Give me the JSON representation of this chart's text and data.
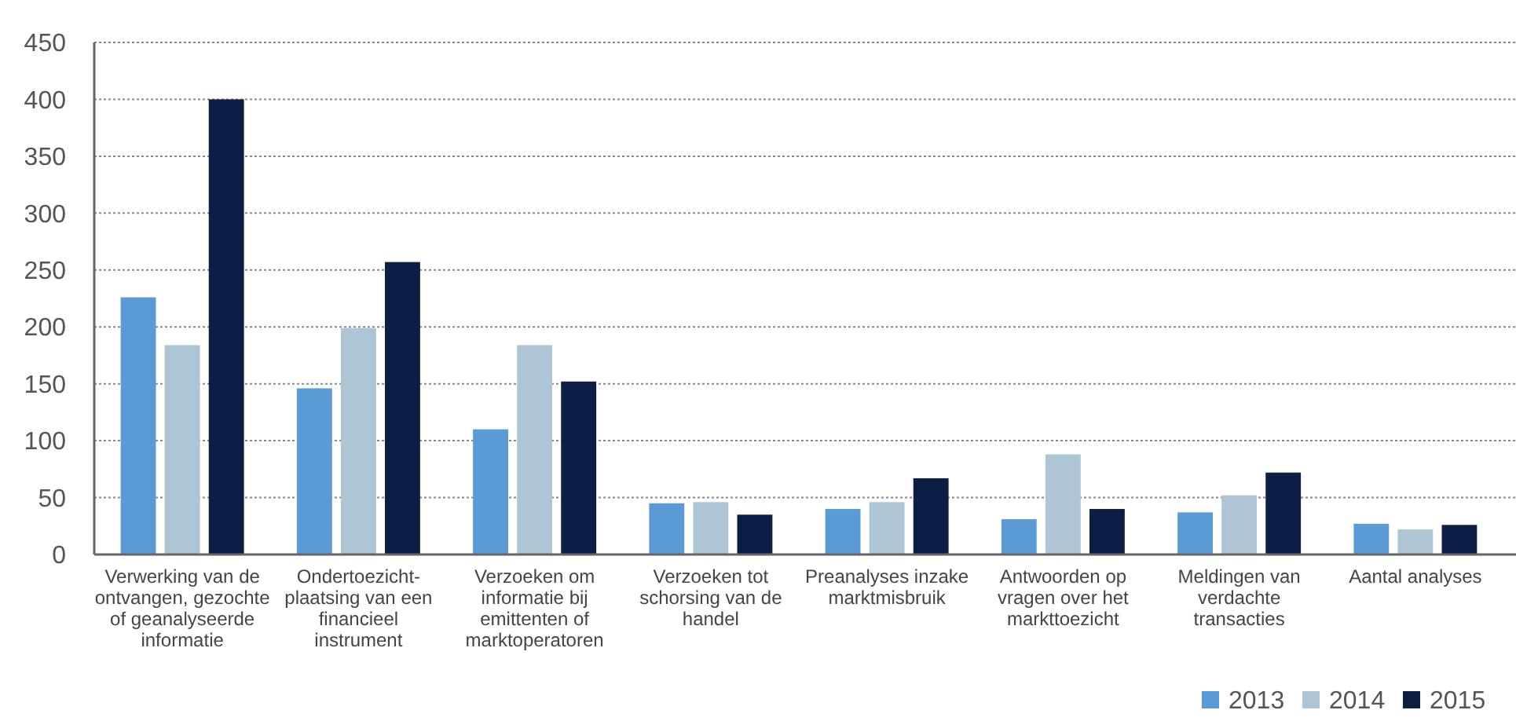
{
  "chart_data": {
    "type": "bar",
    "categories": [
      "Verwerking van de ontvangen, gezochte of geanalyseerde informatie",
      "Ondertoezicht-plaatsing van een financieel instrument",
      "Verzoeken om informatie bij emittenten of marktoperatoren",
      "Verzoeken tot schorsing van de handel",
      "Preanalyses inzake marktmisbruik",
      "Antwoorden op vragen over het markttoezicht",
      "Meldingen van verdachte transacties",
      "Aantal analyses"
    ],
    "series": [
      {
        "name": "2013",
        "color": "#5b9bd5",
        "values": [
          226,
          146,
          110,
          45,
          40,
          31,
          37,
          27
        ]
      },
      {
        "name": "2014",
        "color": "#adc5d4",
        "values": [
          184,
          199,
          184,
          46,
          46,
          88,
          52,
          22
        ]
      },
      {
        "name": "2015",
        "color": "#0d1e45",
        "values": [
          400,
          257,
          152,
          35,
          67,
          40,
          72,
          26
        ]
      }
    ],
    "ylim": [
      0,
      450
    ],
    "yticks": [
      0,
      50,
      100,
      150,
      200,
      250,
      300,
      350,
      400,
      450
    ],
    "grid": "y",
    "legend": "bottom right"
  }
}
